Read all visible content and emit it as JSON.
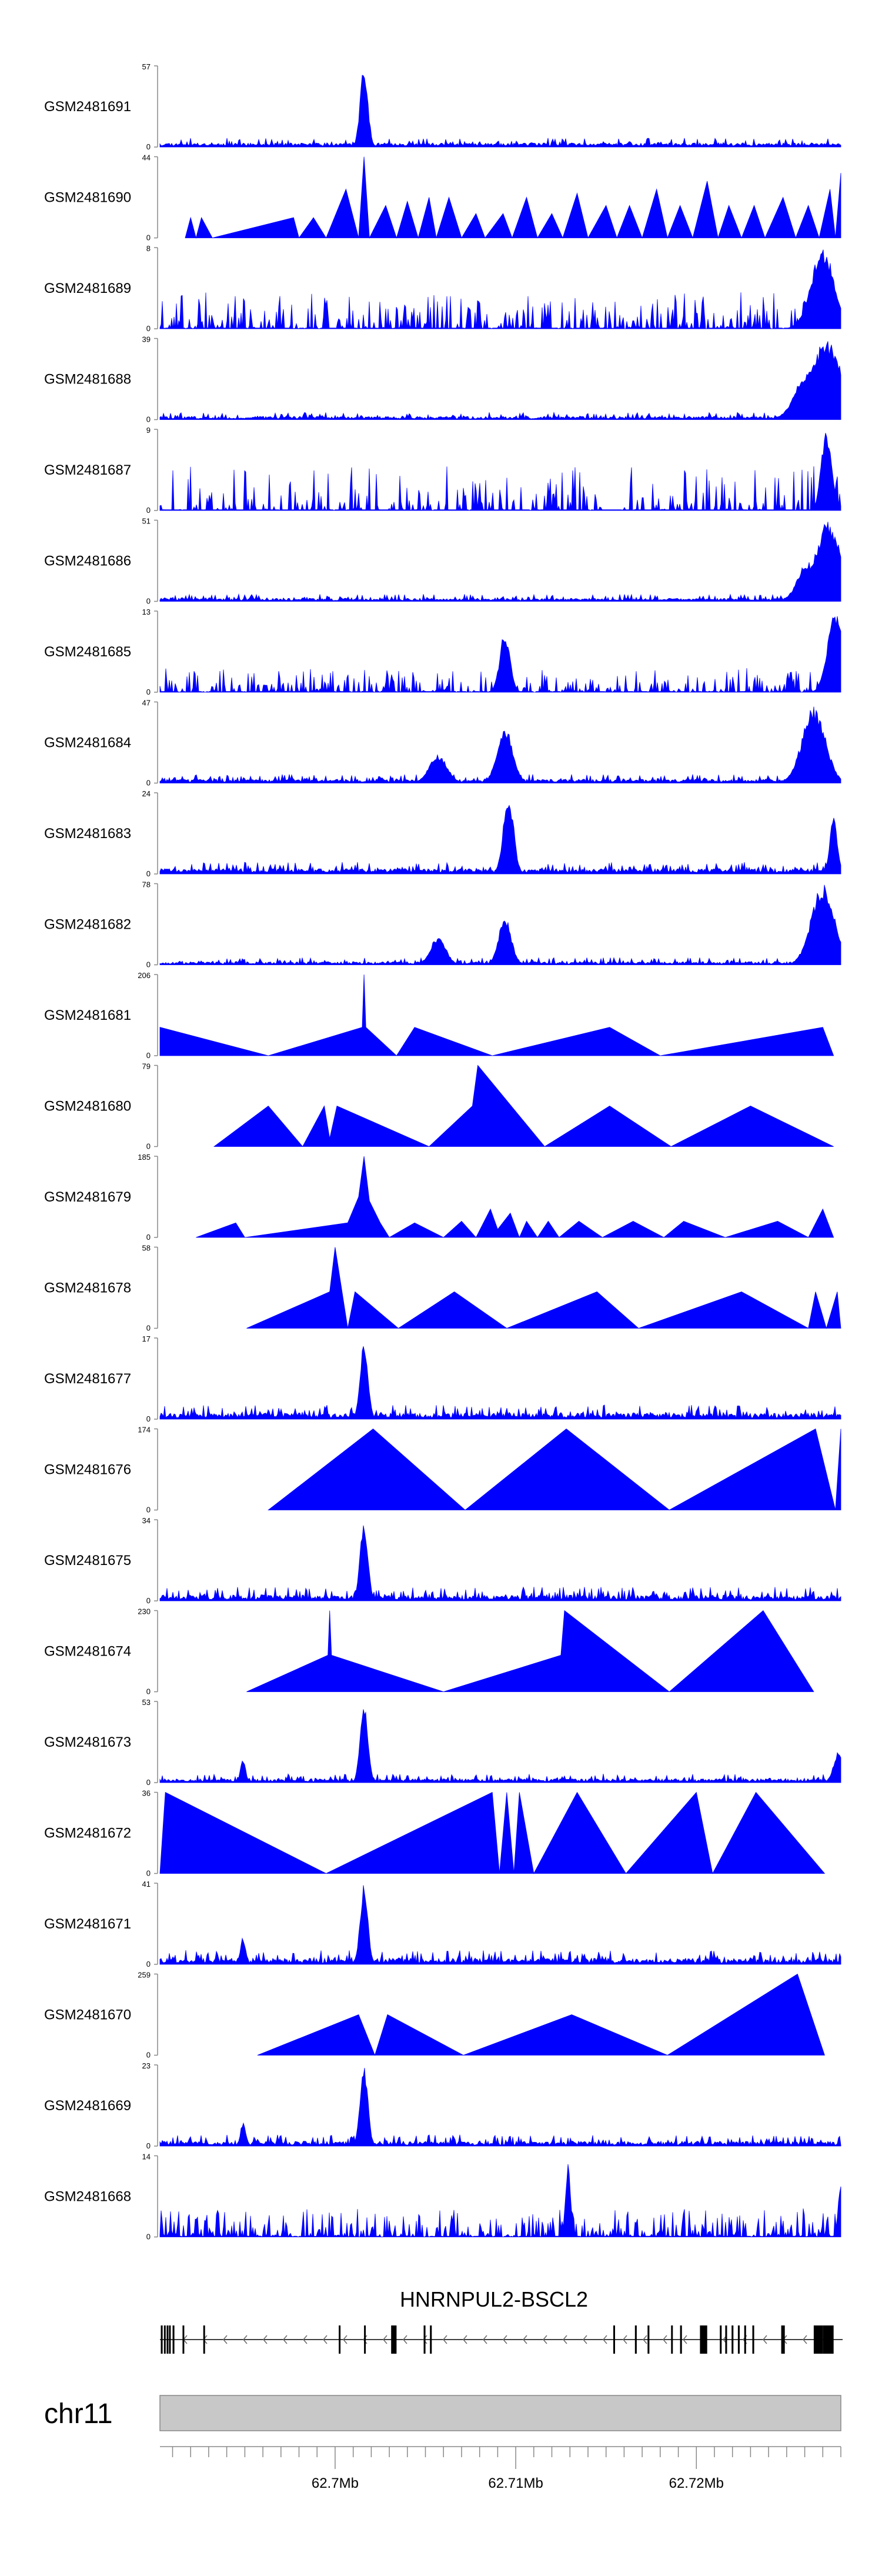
{
  "chart_data": {
    "type": "area",
    "title": "",
    "chromosome": "chr11",
    "gene_label": "HNRNPUL2-BSCL2",
    "x_axis": {
      "ticks": [
        {
          "value": 62.7,
          "label": "62.7Mb"
        },
        {
          "value": 62.71,
          "label": "62.71Mb"
        },
        {
          "value": 62.72,
          "label": "62.72Mb"
        }
      ],
      "range_mb": [
        62.6903,
        62.728
      ]
    },
    "tracks": [
      {
        "name": "GSM2481691",
        "ymax": 57,
        "ymin_label": "0",
        "ymax_label": "57",
        "style": "noise",
        "seed": 11,
        "base": 0.05,
        "jit": 0.06,
        "peaks": [
          [
            62.7016,
            1.0,
            0.0003
          ]
        ]
      },
      {
        "name": "GSM2481690",
        "ymax": 44,
        "ymin_label": "0",
        "ymax_label": "44",
        "style": "tri",
        "points": [
          [
            62.6917,
            0
          ],
          [
            62.692,
            0.25
          ],
          [
            62.6923,
            0
          ],
          [
            62.6926,
            0.25
          ],
          [
            62.6932,
            0
          ],
          [
            62.6977,
            0.25
          ],
          [
            62.698,
            0
          ],
          [
            62.6988,
            0.25
          ],
          [
            62.6995,
            0
          ],
          [
            62.7006,
            0.6
          ],
          [
            62.7013,
            0
          ],
          [
            62.7016,
            1.0
          ],
          [
            62.7019,
            0
          ],
          [
            62.7028,
            0.4
          ],
          [
            62.7034,
            0
          ],
          [
            62.704,
            0.45
          ],
          [
            62.7046,
            0
          ],
          [
            62.7052,
            0.5
          ],
          [
            62.7056,
            0
          ],
          [
            62.7063,
            0.5
          ],
          [
            62.707,
            0
          ],
          [
            62.7078,
            0.3
          ],
          [
            62.7083,
            0
          ],
          [
            62.7093,
            0.3
          ],
          [
            62.7098,
            0
          ],
          [
            62.7106,
            0.5
          ],
          [
            62.7112,
            0
          ],
          [
            62.712,
            0.3
          ],
          [
            62.7126,
            0
          ],
          [
            62.7134,
            0.55
          ],
          [
            62.714,
            0
          ],
          [
            62.715,
            0.4
          ],
          [
            62.7156,
            0
          ],
          [
            62.7163,
            0.4
          ],
          [
            62.717,
            0
          ],
          [
            62.7178,
            0.6
          ],
          [
            62.7184,
            0
          ],
          [
            62.7191,
            0.4
          ],
          [
            62.7198,
            0
          ],
          [
            62.7206,
            0.7
          ],
          [
            62.7212,
            0
          ],
          [
            62.7218,
            0.4
          ],
          [
            62.7225,
            0
          ],
          [
            62.7232,
            0.4
          ],
          [
            62.7238,
            0
          ],
          [
            62.7248,
            0.5
          ],
          [
            62.7255,
            0
          ],
          [
            62.7262,
            0.4
          ],
          [
            62.7268,
            0
          ],
          [
            62.7274,
            0.6
          ],
          [
            62.7277,
            0
          ],
          [
            62.728,
            0.8
          ]
        ]
      },
      {
        "name": "GSM2481689",
        "ymax": 8,
        "ymin_label": "0",
        "ymax_label": "8",
        "style": "spiky",
        "seed": 21,
        "density": 0.55,
        "amp": 0.45,
        "peaks": [
          [
            62.727,
            1.0,
            0.0009
          ]
        ]
      },
      {
        "name": "GSM2481688",
        "ymax": 39,
        "ymin_label": "0",
        "ymax_label": "39",
        "style": "noise",
        "seed": 33,
        "base": 0.03,
        "jit": 0.05,
        "peaks": [
          [
            62.7272,
            1.0,
            0.0012
          ],
          [
            62.7262,
            0.6,
            0.001
          ]
        ]
      },
      {
        "name": "GSM2481687",
        "ymax": 9,
        "ymin_label": "0",
        "ymax_label": "9",
        "style": "spiky",
        "seed": 45,
        "density": 0.45,
        "amp": 0.55,
        "peaks": [
          [
            62.7272,
            1.0,
            0.0004
          ]
        ]
      },
      {
        "name": "GSM2481686",
        "ymax": 51,
        "ymin_label": "0",
        "ymax_label": "51",
        "style": "noise",
        "seed": 57,
        "base": 0.03,
        "jit": 0.05,
        "peaks": [
          [
            62.7273,
            1.0,
            0.001
          ],
          [
            62.7262,
            0.5,
            0.0008
          ]
        ]
      },
      {
        "name": "GSM2481685",
        "ymax": 13,
        "ymin_label": "0",
        "ymax_label": "13",
        "style": "spiky",
        "seed": 69,
        "density": 0.6,
        "amp": 0.3,
        "peaks": [
          [
            62.7094,
            0.75,
            0.0004
          ],
          [
            62.7277,
            1.0,
            0.0006
          ]
        ]
      },
      {
        "name": "GSM2481684",
        "ymax": 47,
        "ymin_label": "0",
        "ymax_label": "47",
        "style": "noise",
        "seed": 81,
        "base": 0.04,
        "jit": 0.06,
        "peaks": [
          [
            62.7057,
            0.35,
            0.0007
          ],
          [
            62.7094,
            0.7,
            0.0006
          ],
          [
            62.7265,
            0.95,
            0.0009
          ]
        ]
      },
      {
        "name": "GSM2481683",
        "ymax": 24,
        "ymin_label": "0",
        "ymax_label": "24",
        "style": "noise",
        "seed": 93,
        "base": 0.06,
        "jit": 0.08,
        "peaks": [
          [
            62.7096,
            1.0,
            0.0004
          ],
          [
            62.7276,
            0.7,
            0.0003
          ]
        ]
      },
      {
        "name": "GSM2481682",
        "ymax": 78,
        "ymin_label": "0",
        "ymax_label": "78",
        "style": "noise",
        "seed": 105,
        "base": 0.03,
        "jit": 0.05,
        "peaks": [
          [
            62.7057,
            0.35,
            0.0006
          ],
          [
            62.7094,
            0.6,
            0.0005
          ],
          [
            62.727,
            1.0,
            0.0009
          ]
        ]
      },
      {
        "name": "GSM2481681",
        "ymax": 206,
        "ymin_label": "0",
        "ymax_label": "206",
        "style": "tri",
        "points": [
          [
            62.6903,
            0.35
          ],
          [
            62.6963,
            0
          ],
          [
            62.7015,
            0.35
          ],
          [
            62.7016,
            1.0
          ],
          [
            62.7017,
            0.35
          ],
          [
            62.7034,
            0
          ],
          [
            62.7044,
            0.35
          ],
          [
            62.7087,
            0
          ],
          [
            62.7152,
            0.35
          ],
          [
            62.718,
            0
          ],
          [
            62.727,
            0.35
          ],
          [
            62.7276,
            0
          ]
        ]
      },
      {
        "name": "GSM2481680",
        "ymax": 79,
        "ymin_label": "0",
        "ymax_label": "79",
        "style": "tri",
        "points": [
          [
            62.6933,
            0
          ],
          [
            62.6963,
            0.5
          ],
          [
            62.6982,
            0
          ],
          [
            62.6994,
            0.5
          ],
          [
            62.6997,
            0.1
          ],
          [
            62.7001,
            0.5
          ],
          [
            62.7052,
            0
          ],
          [
            62.7076,
            0.5
          ],
          [
            62.7079,
            1.0
          ],
          [
            62.7116,
            0
          ],
          [
            62.7152,
            0.5
          ],
          [
            62.7186,
            0
          ],
          [
            62.723,
            0.5
          ],
          [
            62.7276,
            0
          ]
        ]
      },
      {
        "name": "GSM2481679",
        "ymax": 185,
        "ymin_label": "0",
        "ymax_label": "185",
        "style": "tri",
        "points": [
          [
            62.6923,
            0
          ],
          [
            62.6945,
            0.18
          ],
          [
            62.695,
            0
          ],
          [
            62.7007,
            0.18
          ],
          [
            62.7013,
            0.5
          ],
          [
            62.7016,
            1.0
          ],
          [
            62.7019,
            0.45
          ],
          [
            62.7025,
            0.18
          ],
          [
            62.703,
            0
          ],
          [
            62.7044,
            0.18
          ],
          [
            62.706,
            0
          ],
          [
            62.707,
            0.2
          ],
          [
            62.7078,
            0
          ],
          [
            62.7086,
            0.35
          ],
          [
            62.709,
            0.1
          ],
          [
            62.7097,
            0.3
          ],
          [
            62.7102,
            0
          ],
          [
            62.7106,
            0.2
          ],
          [
            62.7112,
            0
          ],
          [
            62.7118,
            0.2
          ],
          [
            62.7124,
            0
          ],
          [
            62.7135,
            0.2
          ],
          [
            62.7148,
            0
          ],
          [
            62.7165,
            0.2
          ],
          [
            62.7182,
            0
          ],
          [
            62.7193,
            0.2
          ],
          [
            62.7216,
            0
          ],
          [
            62.7245,
            0.2
          ],
          [
            62.7262,
            0
          ],
          [
            62.727,
            0.35
          ],
          [
            62.7276,
            0
          ]
        ]
      },
      {
        "name": "GSM2481678",
        "ymax": 58,
        "ymin_label": "0",
        "ymax_label": "58",
        "style": "tri",
        "points": [
          [
            62.6951,
            0
          ],
          [
            62.6997,
            0.45
          ],
          [
            62.7,
            1.0
          ],
          [
            62.7007,
            0
          ],
          [
            62.7011,
            0.45
          ],
          [
            62.7035,
            0
          ],
          [
            62.7066,
            0.45
          ],
          [
            62.7095,
            0
          ],
          [
            62.7145,
            0.45
          ],
          [
            62.7168,
            0
          ],
          [
            62.7225,
            0.45
          ],
          [
            62.7262,
            0
          ],
          [
            62.7266,
            0.45
          ],
          [
            62.7272,
            0
          ],
          [
            62.7278,
            0.45
          ],
          [
            62.728,
            0
          ]
        ]
      },
      {
        "name": "GSM2481677",
        "ymax": 17,
        "ymin_label": "0",
        "ymax_label": "17",
        "style": "noise",
        "seed": 117,
        "base": 0.05,
        "jit": 0.1,
        "peaks": [
          [
            62.7016,
            1.0,
            0.0003
          ]
        ]
      },
      {
        "name": "GSM2481676",
        "ymax": 174,
        "ymin_label": "0",
        "ymax_label": "174",
        "style": "tri",
        "points": [
          [
            62.6963,
            0
          ],
          [
            62.7021,
            1.0
          ],
          [
            62.7072,
            0
          ],
          [
            62.7128,
            1.0
          ],
          [
            62.7185,
            0
          ],
          [
            62.7266,
            1.0
          ],
          [
            62.7277,
            0
          ],
          [
            62.728,
            1.0
          ]
        ]
      },
      {
        "name": "GSM2481675",
        "ymax": 34,
        "ymin_label": "0",
        "ymax_label": "34",
        "style": "noise",
        "seed": 129,
        "base": 0.04,
        "jit": 0.1,
        "peaks": [
          [
            62.7016,
            1.0,
            0.0003
          ]
        ]
      },
      {
        "name": "GSM2481674",
        "ymax": 230,
        "ymin_label": "0",
        "ymax_label": "230",
        "style": "tri",
        "points": [
          [
            62.6951,
            0
          ],
          [
            62.6996,
            0.45
          ],
          [
            62.6997,
            1.0
          ],
          [
            62.6998,
            0.45
          ],
          [
            62.706,
            0
          ],
          [
            62.7125,
            0.45
          ],
          [
            62.7127,
            1.0
          ],
          [
            62.7185,
            0
          ],
          [
            62.7237,
            1.0
          ],
          [
            62.7265,
            0
          ]
        ]
      },
      {
        "name": "GSM2481673",
        "ymax": 53,
        "ymin_label": "0",
        "ymax_label": "53",
        "style": "noise",
        "seed": 141,
        "base": 0.04,
        "jit": 0.06,
        "peaks": [
          [
            62.7016,
            1.0,
            0.0003
          ],
          [
            62.6949,
            0.3,
            0.0002
          ],
          [
            62.7279,
            0.4,
            0.0004
          ]
        ]
      },
      {
        "name": "GSM2481672",
        "ymax": 36,
        "ymin_label": "0",
        "ymax_label": "36",
        "style": "tri",
        "points": [
          [
            62.6903,
            0
          ],
          [
            62.6906,
            1.0
          ],
          [
            62.6995,
            0
          ],
          [
            62.7087,
            1.0
          ],
          [
            62.7091,
            0
          ],
          [
            62.7095,
            1.0
          ],
          [
            62.7099,
            0
          ],
          [
            62.7102,
            1.0
          ],
          [
            62.711,
            0
          ],
          [
            62.7134,
            1.0
          ],
          [
            62.7161,
            0
          ],
          [
            62.72,
            1.0
          ],
          [
            62.7209,
            0
          ],
          [
            62.7233,
            1.0
          ],
          [
            62.7271,
            0
          ]
        ]
      },
      {
        "name": "GSM2481671",
        "ymax": 41,
        "ymin_label": "0",
        "ymax_label": "41",
        "style": "noise",
        "seed": 153,
        "base": 0.05,
        "jit": 0.1,
        "peaks": [
          [
            62.7016,
            1.0,
            0.0003
          ],
          [
            62.6949,
            0.35,
            0.0002
          ]
        ]
      },
      {
        "name": "GSM2481670",
        "ymax": 259,
        "ymin_label": "0",
        "ymax_label": "259",
        "style": "tri",
        "points": [
          [
            62.6957,
            0
          ],
          [
            62.7013,
            0.5
          ],
          [
            62.7022,
            0
          ],
          [
            62.7029,
            0.5
          ],
          [
            62.7071,
            0
          ],
          [
            62.7131,
            0.5
          ],
          [
            62.7184,
            0
          ],
          [
            62.7256,
            1.0
          ],
          [
            62.7271,
            0
          ]
        ]
      },
      {
        "name": "GSM2481669",
        "ymax": 23,
        "ymin_label": "0",
        "ymax_label": "23",
        "style": "noise",
        "seed": 165,
        "base": 0.04,
        "jit": 0.08,
        "peaks": [
          [
            62.7016,
            1.0,
            0.0003
          ],
          [
            62.6949,
            0.3,
            0.0002
          ]
        ]
      },
      {
        "name": "GSM2481668",
        "ymax": 14,
        "ymin_label": "0",
        "ymax_label": "14",
        "style": "spiky",
        "seed": 177,
        "density": 0.7,
        "amp": 0.35,
        "peaks": [
          [
            62.7129,
            0.9,
            0.0002
          ],
          [
            62.728,
            0.7,
            0.0002
          ]
        ]
      }
    ],
    "gene_model": {
      "strand": "-",
      "start_mb": 62.6903,
      "end_mb": 62.7281,
      "exons": [
        [
          62.69035,
          62.69045
        ],
        [
          62.69052,
          62.6906
        ],
        [
          62.69067,
          62.69074
        ],
        [
          62.6908,
          62.69088
        ],
        [
          62.691,
          62.6911
        ],
        [
          62.69155,
          62.69162
        ],
        [
          62.6927,
          62.69277
        ],
        [
          62.7002,
          62.70027
        ],
        [
          62.7016,
          62.70167
        ],
        [
          62.7031,
          62.7034
        ],
        [
          62.7049,
          62.705
        ],
        [
          62.70525,
          62.70535
        ],
        [
          62.7154,
          62.71548
        ],
        [
          62.7166,
          62.7167
        ],
        [
          62.7173,
          62.7174
        ],
        [
          62.7186,
          62.71865
        ],
        [
          62.7191,
          62.7192
        ],
        [
          62.7202,
          62.7206
        ],
        [
          62.7213,
          62.7214
        ],
        [
          62.7216,
          62.7217
        ],
        [
          62.72195,
          62.72205
        ],
        [
          62.7223,
          62.7224
        ],
        [
          62.72265,
          62.72275
        ],
        [
          62.7231,
          62.7232
        ],
        [
          62.7247,
          62.7249
        ],
        [
          62.7265,
          62.727
        ],
        [
          62.727,
          62.7276
        ]
      ]
    }
  }
}
